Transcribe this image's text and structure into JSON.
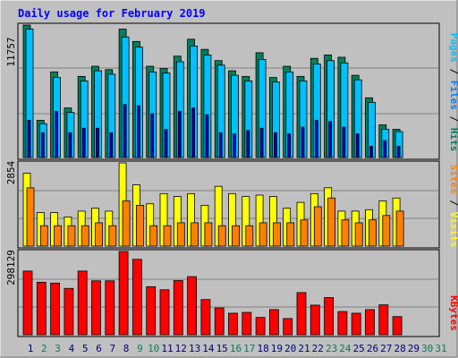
{
  "title": "Daily usage for February 2019",
  "colors": {
    "background": "#C0C0C0",
    "title": "#0000FF",
    "hits": "#00805C",
    "files": "#0080FF",
    "pages": "#00C0FF",
    "visits": "#FFFF00",
    "sites": "#FF8000",
    "kbytes": "#FF0000",
    "weekend_label": "#00805C",
    "weekday_label": "#000080"
  },
  "right_labels": {
    "top": [
      "Pages",
      "Files",
      "Hits"
    ],
    "mid": [
      "Sites",
      "Visits"
    ],
    "bottom": "KBytes"
  },
  "chart_data": [
    {
      "type": "bar",
      "name": "hits-files-pages",
      "y_label": "11757",
      "ylim": [
        0,
        11757
      ],
      "categories": [
        "1",
        "2",
        "3",
        "4",
        "5",
        "6",
        "7",
        "8",
        "9",
        "10",
        "11",
        "12",
        "13",
        "14",
        "15",
        "16",
        "17",
        "18",
        "19",
        "20",
        "21",
        "22",
        "23",
        "24",
        "25",
        "26",
        "27",
        "28",
        "29",
        "30",
        "31"
      ],
      "series": [
        {
          "name": "Hits",
          "values": [
            11757,
            3300,
            7600,
            4400,
            7200,
            8100,
            7800,
            11400,
            10300,
            8100,
            7900,
            9000,
            10500,
            9600,
            8600,
            7700,
            7200,
            9300,
            7100,
            8100,
            7200,
            8800,
            9100,
            8900,
            7300,
            5300,
            2900,
            2500,
            null,
            null,
            null
          ]
        },
        {
          "name": "Files",
          "values": [
            11400,
            3000,
            7100,
            4000,
            6800,
            7700,
            7400,
            10700,
            9800,
            7600,
            7500,
            8500,
            9900,
            9100,
            8200,
            7300,
            6800,
            8700,
            6700,
            7600,
            6800,
            8300,
            8600,
            8400,
            6900,
            4900,
            2500,
            2300,
            null,
            null,
            null
          ]
        },
        {
          "name": "Pages",
          "values": [
            3300,
            2200,
            4100,
            2200,
            2600,
            2600,
            2200,
            4700,
            4600,
            3900,
            2500,
            4100,
            4400,
            3800,
            2200,
            2100,
            2400,
            2600,
            2200,
            2100,
            2700,
            3300,
            3200,
            2700,
            2100,
            1000,
            1500,
            1000,
            null,
            null,
            null
          ]
        }
      ]
    },
    {
      "type": "bar",
      "name": "visits-sites",
      "y_label": "2854",
      "ylim": [
        0,
        2854
      ],
      "categories": [
        "1",
        "2",
        "3",
        "4",
        "5",
        "6",
        "7",
        "8",
        "9",
        "10",
        "11",
        "12",
        "13",
        "14",
        "15",
        "16",
        "17",
        "18",
        "19",
        "20",
        "21",
        "22",
        "23",
        "24",
        "25",
        "26",
        "27",
        "28",
        "29",
        "30",
        "31"
      ],
      "series": [
        {
          "name": "Visits",
          "values": [
            2500,
            1150,
            1150,
            1000,
            1200,
            1300,
            1200,
            2854,
            2100,
            1450,
            1800,
            1700,
            1800,
            1400,
            2050,
            1800,
            1700,
            1750,
            1700,
            1300,
            1500,
            1800,
            2000,
            1200,
            1200,
            1250,
            1550,
            1650,
            null,
            null,
            null
          ]
        },
        {
          "name": "Sites",
          "values": [
            2000,
            700,
            700,
            700,
            700,
            800,
            700,
            1550,
            1400,
            700,
            700,
            800,
            800,
            800,
            700,
            700,
            700,
            800,
            800,
            800,
            900,
            1350,
            1650,
            900,
            800,
            900,
            1050,
            1200,
            null,
            null,
            null
          ]
        }
      ]
    },
    {
      "type": "bar",
      "name": "kbytes",
      "y_label": "298129",
      "ylim": [
        0,
        298129
      ],
      "categories": [
        "1",
        "2",
        "3",
        "4",
        "5",
        "6",
        "7",
        "8",
        "9",
        "10",
        "11",
        "12",
        "13",
        "14",
        "15",
        "16",
        "17",
        "18",
        "19",
        "20",
        "21",
        "22",
        "23",
        "24",
        "25",
        "26",
        "27",
        "28",
        "29",
        "30",
        "31"
      ],
      "series": [
        {
          "name": "KBytes",
          "values": [
            228000,
            188000,
            185000,
            166000,
            228000,
            193000,
            193000,
            298129,
            270000,
            172000,
            161000,
            194000,
            208000,
            126000,
            96000,
            77000,
            80000,
            62000,
            90000,
            58000,
            151000,
            106000,
            133000,
            83000,
            77000,
            90000,
            107000,
            65000,
            null,
            null,
            null
          ]
        }
      ]
    }
  ],
  "day_labels": [
    {
      "text": "1",
      "weekend": false
    },
    {
      "text": "2",
      "weekend": true
    },
    {
      "text": "3",
      "weekend": true
    },
    {
      "text": "4",
      "weekend": false
    },
    {
      "text": "5",
      "weekend": false
    },
    {
      "text": "6",
      "weekend": false
    },
    {
      "text": "7",
      "weekend": false
    },
    {
      "text": "8",
      "weekend": false
    },
    {
      "text": "9",
      "weekend": true
    },
    {
      "text": "10",
      "weekend": true
    },
    {
      "text": "11",
      "weekend": false
    },
    {
      "text": "12",
      "weekend": false
    },
    {
      "text": "13",
      "weekend": false
    },
    {
      "text": "14",
      "weekend": false
    },
    {
      "text": "15",
      "weekend": false
    },
    {
      "text": "16",
      "weekend": true
    },
    {
      "text": "17",
      "weekend": true
    },
    {
      "text": "18",
      "weekend": false
    },
    {
      "text": "19",
      "weekend": false
    },
    {
      "text": "20",
      "weekend": false
    },
    {
      "text": "21",
      "weekend": false
    },
    {
      "text": "22",
      "weekend": false
    },
    {
      "text": "23",
      "weekend": true
    },
    {
      "text": "24",
      "weekend": true
    },
    {
      "text": "25",
      "weekend": false
    },
    {
      "text": "26",
      "weekend": false
    },
    {
      "text": "27",
      "weekend": false
    },
    {
      "text": "28",
      "weekend": false
    },
    {
      "text": "29",
      "weekend": false
    },
    {
      "text": "30",
      "weekend": true
    },
    {
      "text": "31",
      "weekend": true
    }
  ]
}
